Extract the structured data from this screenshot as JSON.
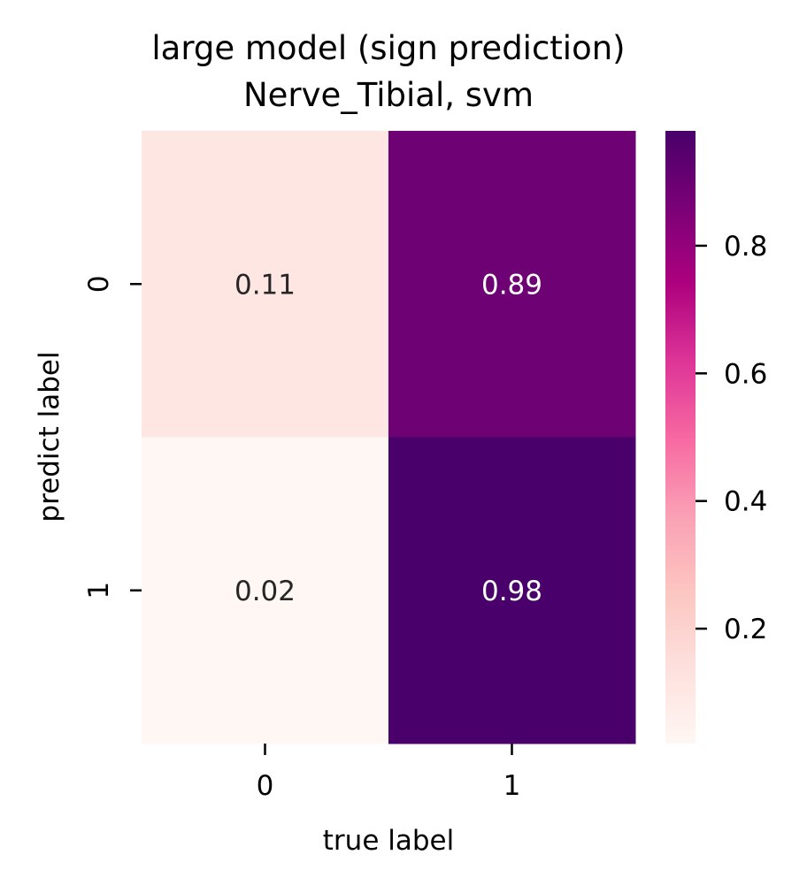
{
  "chart_data": {
    "type": "heatmap",
    "title": [
      "large model (sign prediction)",
      "Nerve_Tibial, svm"
    ],
    "xlabel": "true label",
    "ylabel": "predict label",
    "x_categories": [
      "0",
      "1"
    ],
    "y_categories": [
      "0",
      "1"
    ],
    "values": [
      [
        0.11,
        0.89
      ],
      [
        0.02,
        0.98
      ]
    ],
    "value_labels": [
      [
        "0.11",
        "0.89"
      ],
      [
        "0.02",
        "0.98"
      ]
    ],
    "colorbar": {
      "range": [
        0.02,
        0.98
      ],
      "ticks": [
        0.2,
        0.4,
        0.6,
        0.8
      ],
      "tick_labels": [
        "0.2",
        "0.4",
        "0.6",
        "0.8"
      ],
      "colormap": "RdPu"
    },
    "colormap_stops": [
      "#fff7f3",
      "#fde0dd",
      "#fcc5c0",
      "#fa9fb5",
      "#f768a1",
      "#dd3497",
      "#ae017e",
      "#7a0177",
      "#49006a"
    ]
  }
}
